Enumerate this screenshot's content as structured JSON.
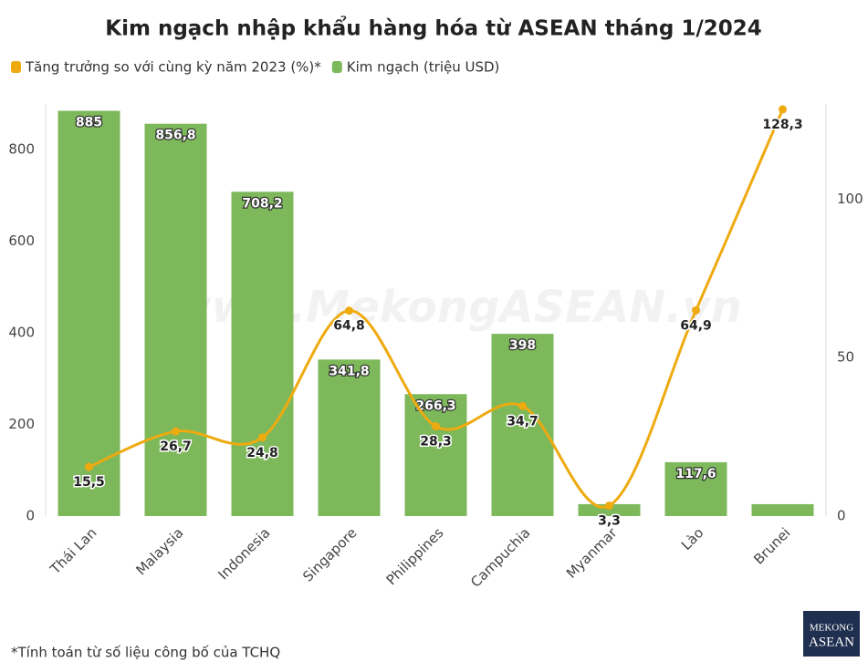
{
  "chart_data": {
    "type": "combo",
    "title": "Kim ngạch nhập khẩu hàng hóa từ ASEAN tháng 1/2024",
    "categories": [
      "Thái Lan",
      "Malaysia",
      "Indonesia",
      "Singapore",
      "Philippines",
      "Campuchia",
      "Myanmar",
      "Lào",
      "Brunei"
    ],
    "series": [
      {
        "name": "Tăng trưởng so với cùng kỳ năm 2023 (%)*",
        "type": "line",
        "axis": "y2",
        "color": "#eeaa0f",
        "values": [
          15.5,
          26.7,
          24.8,
          64.8,
          28.3,
          34.7,
          3.3,
          64.9,
          128.3
        ],
        "value_labels": [
          "15,5",
          "26,7",
          "24,8",
          "64,8",
          "28,3",
          "34,7",
          "3,3",
          "64,9",
          "128,3"
        ]
      },
      {
        "name": "Kim ngạch (triệu USD)",
        "type": "bar",
        "color": "#7db85a",
        "values": [
          885,
          856.8,
          708.2,
          341.8,
          266.3,
          398,
          26,
          117.6,
          26
        ],
        "value_labels": [
          "885",
          "856,8",
          "708,2",
          "341,8",
          "266,3",
          "398",
          null,
          "117,6",
          null
        ]
      }
    ],
    "ylim": [
      0,
      900
    ],
    "yticks": [
      0,
      200,
      400,
      600,
      800
    ],
    "y2lim": [
      0,
      130
    ],
    "y2ticks": [
      0,
      50,
      100
    ],
    "grid": false,
    "legend": "top-left",
    "watermark": "www.MekongASEAN.vn",
    "footnote": "*Tính toán từ số liệu công bố của TCHQ",
    "logo": {
      "line1": "MEKONG",
      "line2": "ASEAN"
    }
  }
}
